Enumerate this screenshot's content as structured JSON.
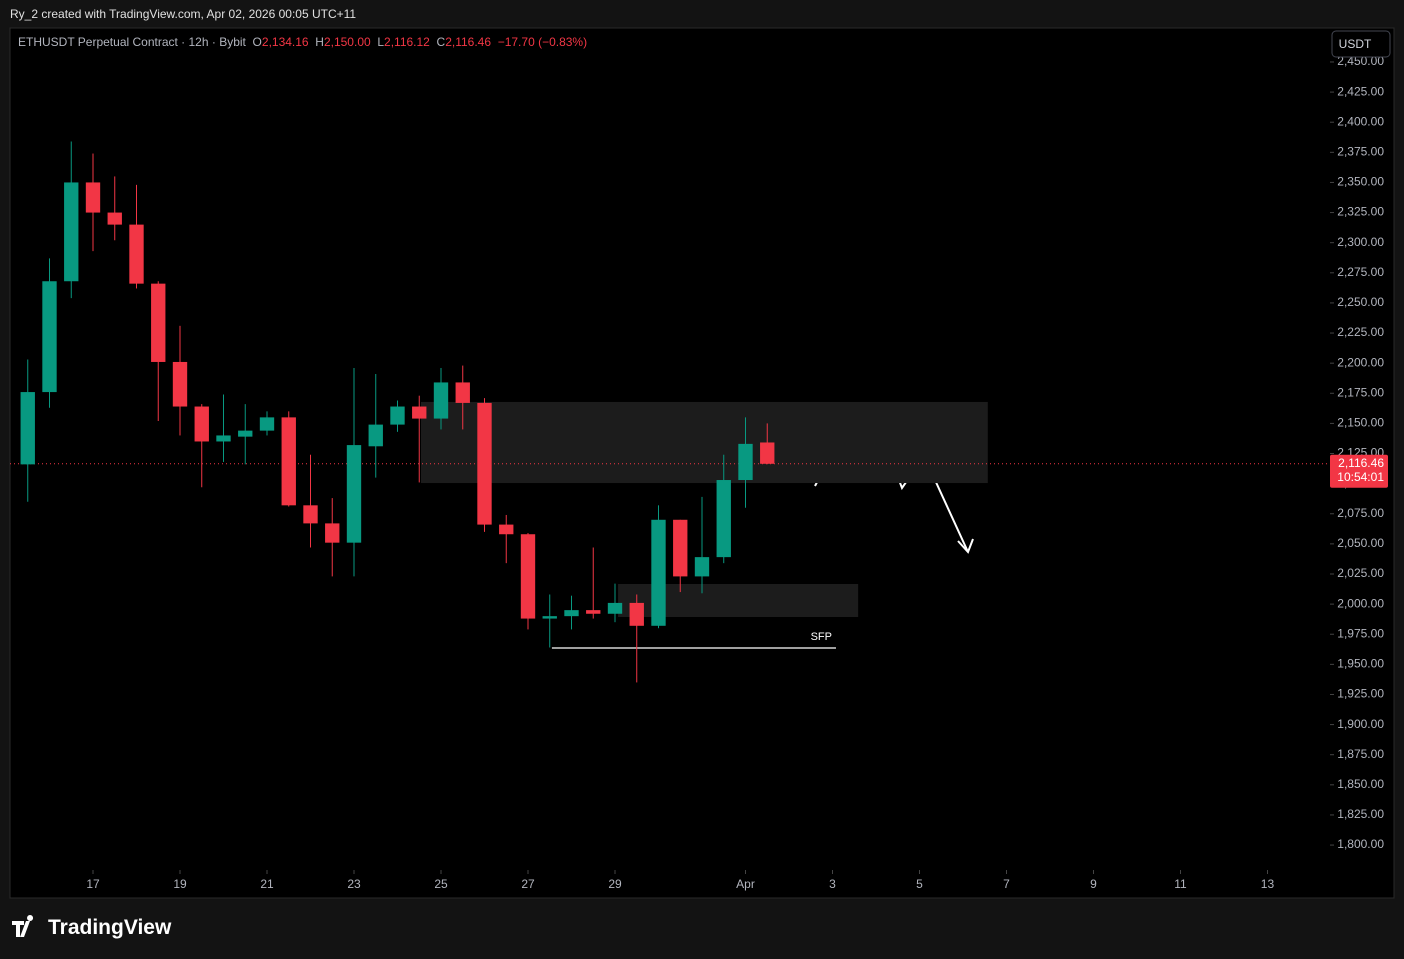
{
  "header": {
    "credit": "Ry_2 created with TradingView.com, Apr 02, 2026 00:05 UTC+11"
  },
  "footer": {
    "brand": "TradingView"
  },
  "chart_data": {
    "type": "candlestick",
    "title": "ETHUSDT Perpetual Contract · 12h · Bybit",
    "legend": {
      "o": "O",
      "open": "2,134.16",
      "h": "H",
      "high": "2,150.00",
      "l": "L",
      "low": "2,116.12",
      "c": "C",
      "close": "2,116.46",
      "change": "−17.70 (−0.83%)"
    },
    "currency": "USDT",
    "up_color": "#089981",
    "down_color": "#f23645",
    "x": [
      15.5,
      16,
      16.5,
      17,
      17.5,
      18,
      18.5,
      19,
      19.5,
      20,
      20.5,
      21,
      21.5,
      22,
      22.5,
      23,
      23.5,
      24,
      24.5,
      25,
      25.5,
      26,
      26.5,
      27,
      27.5,
      28,
      28.5,
      29,
      29.5,
      30,
      30.5,
      31,
      31.5,
      32,
      32.5
    ],
    "open": [
      2116,
      2176,
      2268,
      2350,
      2325,
      2315,
      2266,
      2201,
      2164,
      2135,
      2139,
      2144,
      2155,
      2082,
      2067,
      2051,
      2131,
      2149,
      2164,
      2154,
      2184,
      2167,
      2066,
      2058,
      1988,
      1990,
      1995,
      1992,
      2001,
      1982,
      2070,
      2023,
      2039,
      2103,
      2134.16
    ],
    "high": [
      2203,
      2287,
      2384,
      2374,
      2355,
      2348,
      2268,
      2231,
      2166,
      2174,
      2166,
      2160,
      2160,
      2124,
      2088,
      2196,
      2191,
      2169,
      2173,
      2196,
      2198,
      2171,
      2074,
      2059,
      2008,
      2007,
      2047,
      2017,
      2008,
      2082,
      2070,
      2089,
      2124,
      2155,
      2150
    ],
    "low": [
      2085,
      2163,
      2254,
      2293,
      2302,
      2262,
      2152,
      2140,
      2097,
      2118,
      2116,
      2140,
      2081,
      2047,
      2023,
      2023,
      2105,
      2143,
      2101,
      2145,
      2145,
      2060,
      2034,
      1979,
      1964,
      1979,
      1988,
      1985,
      1935,
      1980,
      2010,
      2009,
      2034,
      2080,
      2116.12
    ],
    "close": [
      2176,
      2268,
      2350,
      2325,
      2315,
      2266,
      2201,
      2164,
      2135,
      2140,
      2144,
      2155,
      2082,
      2067,
      2051,
      2132,
      2149,
      2164,
      2154,
      2184,
      2167,
      2066,
      2058,
      1988,
      1990,
      1995,
      1992,
      2001,
      1982,
      2070,
      2023,
      2039,
      2103,
      2133,
      2116.46
    ],
    "xlim": [
      15.092,
      45.437
    ],
    "xticks": [
      17,
      19,
      21,
      23,
      25,
      27,
      29,
      {
        "value": 32,
        "label": "Apr"
      },
      {
        "value": 34,
        "label": "3"
      },
      {
        "value": 36,
        "label": "5"
      },
      {
        "value": 38,
        "label": "7"
      },
      {
        "value": 40,
        "label": "9"
      },
      {
        "value": 42,
        "label": "11"
      },
      {
        "value": 44,
        "label": "13"
      }
    ],
    "ylim": [
      1779.3,
      2478.2
    ],
    "yticks": [
      {
        "value": 1800,
        "label": "1,800.00"
      },
      {
        "value": 1825,
        "label": "1,825.00"
      },
      {
        "value": 1850,
        "label": "1,850.00"
      },
      {
        "value": 1875,
        "label": "1,875.00"
      },
      {
        "value": 1900,
        "label": "1,900.00"
      },
      {
        "value": 1925,
        "label": "1,925.00"
      },
      {
        "value": 1950,
        "label": "1,950.00"
      },
      {
        "value": 1975,
        "label": "1,975.00"
      },
      {
        "value": 2000,
        "label": "2,000.00"
      },
      {
        "value": 2025,
        "label": "2,025.00"
      },
      {
        "value": 2050,
        "label": "2,050.00"
      },
      {
        "value": 2075,
        "label": "2,075.00"
      },
      {
        "value": 2100,
        "label": "2,100.00"
      },
      {
        "value": 2125,
        "label": "2,125.00"
      },
      {
        "value": 2150,
        "label": "2,150.00"
      },
      {
        "value": 2175,
        "label": "2,175.00"
      },
      {
        "value": 2200,
        "label": "2,200.00"
      },
      {
        "value": 2225,
        "label": "2,225.00"
      },
      {
        "value": 2250,
        "label": "2,250.00"
      },
      {
        "value": 2275,
        "label": "2,275.00"
      },
      {
        "value": 2300,
        "label": "2,300.00"
      },
      {
        "value": 2325,
        "label": "2,325.00"
      },
      {
        "value": 2350,
        "label": "2,350.00"
      },
      {
        "value": 2375,
        "label": "2,375.00"
      },
      {
        "value": 2400,
        "label": "2,400.00"
      },
      {
        "value": 2425,
        "label": "2,425.00"
      },
      {
        "value": 2450,
        "label": "2,450.00"
      }
    ],
    "last_price": {
      "value": 2116.46,
      "label": "2,116.46",
      "countdown": "10:54:01"
    },
    "zones": [
      {
        "x": [
          24.54,
          37.57
        ],
        "y": [
          2100.5,
          2167.8
        ]
      },
      {
        "x": [
          29.07,
          34.59
        ],
        "y": [
          1989.3,
          2016.7
        ]
      }
    ],
    "sfp": {
      "label": "SFP",
      "value": 1963.6,
      "x": [
        27.55,
        34.08
      ]
    }
  }
}
